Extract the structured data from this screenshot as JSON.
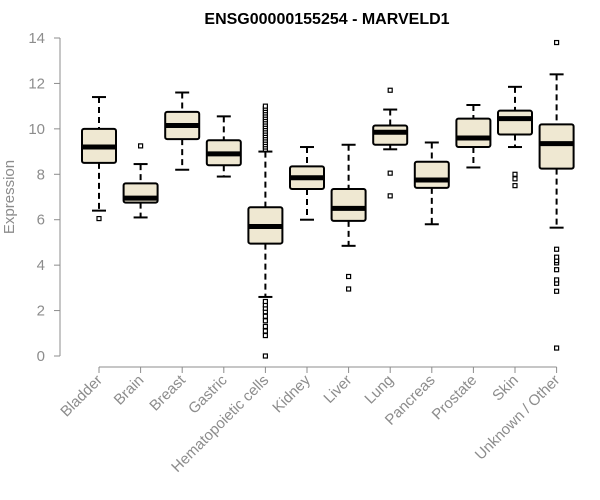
{
  "chart_data": {
    "type": "boxplot",
    "title": "ENSG00000155254 - MARVELD1",
    "xlabel": "",
    "ylabel": "Expression",
    "ylim": [
      0,
      14
    ],
    "yticks": [
      0,
      2,
      4,
      6,
      8,
      10,
      12,
      14
    ],
    "colors": {
      "box_fill": "#efe8d2",
      "box_stroke": "#000000",
      "axis": "#8c8c8c",
      "text": "#8c8c8c"
    },
    "categories": [
      "Bladder",
      "Brain",
      "Breast",
      "Gastric",
      "Hematopoietic cells",
      "Kidney",
      "Liver",
      "Lung",
      "Pancreas",
      "Prostate",
      "Skin",
      "Unknown / Other"
    ],
    "boxes": [
      {
        "name": "Bladder",
        "whisker_low": 6.4,
        "q1": 8.5,
        "median": 9.2,
        "q3": 10.0,
        "whisker_high": 11.4,
        "outliers": [
          6.05
        ]
      },
      {
        "name": "Brain",
        "whisker_low": 6.1,
        "q1": 6.75,
        "median": 6.95,
        "q3": 7.6,
        "whisker_high": 8.45,
        "outliers": [
          9.25
        ]
      },
      {
        "name": "Breast",
        "whisker_low": 8.2,
        "q1": 9.55,
        "median": 10.15,
        "q3": 10.75,
        "whisker_high": 11.6,
        "outliers": []
      },
      {
        "name": "Gastric",
        "whisker_low": 7.9,
        "q1": 8.4,
        "median": 8.9,
        "q3": 9.5,
        "whisker_high": 10.55,
        "outliers": []
      },
      {
        "name": "Hematopoietic cells",
        "whisker_low": 2.6,
        "q1": 4.95,
        "median": 5.7,
        "q3": 6.55,
        "whisker_high": 9.0,
        "outliers": [
          0.0,
          0.9,
          1.1,
          1.3,
          1.55,
          1.75,
          1.95,
          2.1,
          2.25,
          2.4,
          9.1,
          9.2,
          9.3,
          9.4,
          9.5,
          9.6,
          9.7,
          9.8,
          9.9,
          10.0,
          10.1,
          10.2,
          10.3,
          10.4,
          10.5,
          10.6,
          10.7,
          10.8,
          10.9,
          11.0
        ]
      },
      {
        "name": "Kidney",
        "whisker_low": 6.0,
        "q1": 7.35,
        "median": 7.85,
        "q3": 8.35,
        "whisker_high": 9.2,
        "outliers": []
      },
      {
        "name": "Liver",
        "whisker_low": 4.85,
        "q1": 5.95,
        "median": 6.5,
        "q3": 7.35,
        "whisker_high": 9.3,
        "outliers": [
          2.95,
          3.5
        ]
      },
      {
        "name": "Lung",
        "whisker_low": 9.1,
        "q1": 9.3,
        "median": 9.85,
        "q3": 10.15,
        "whisker_high": 10.85,
        "outliers": [
          7.05,
          8.05,
          11.7
        ]
      },
      {
        "name": "Pancreas",
        "whisker_low": 5.8,
        "q1": 7.4,
        "median": 7.75,
        "q3": 8.55,
        "whisker_high": 9.4,
        "outliers": []
      },
      {
        "name": "Prostate",
        "whisker_low": 8.3,
        "q1": 9.2,
        "median": 9.6,
        "q3": 10.45,
        "whisker_high": 11.05,
        "outliers": []
      },
      {
        "name": "Skin",
        "whisker_low": 9.2,
        "q1": 9.75,
        "median": 10.45,
        "q3": 10.8,
        "whisker_high": 11.85,
        "outliers": [
          7.5,
          7.8,
          8.0
        ]
      },
      {
        "name": "Unknown / Other",
        "whisker_low": 5.65,
        "q1": 8.25,
        "median": 9.35,
        "q3": 10.2,
        "whisker_high": 12.4,
        "outliers": [
          0.35,
          2.85,
          3.2,
          3.35,
          3.8,
          4.1,
          4.2,
          4.35,
          4.7,
          13.8
        ]
      }
    ]
  }
}
